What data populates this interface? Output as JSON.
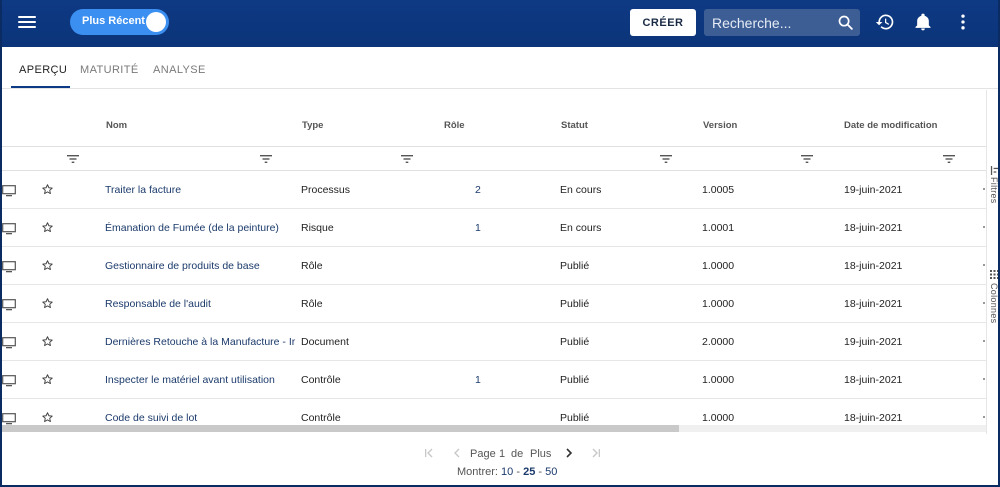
{
  "topbar": {
    "toggle_label": "Plus Récent",
    "create_label": "CRÉER",
    "search_placeholder": "Recherche..."
  },
  "tabs": [
    {
      "label": "APERÇU",
      "active": true
    },
    {
      "label": "MATURITÉ",
      "active": false
    },
    {
      "label": "ANALYSE",
      "active": false
    }
  ],
  "columns": {
    "nom": "Nom",
    "type": "Type",
    "role": "Rôle",
    "statut": "Statut",
    "version": "Version",
    "date": "Date de modification"
  },
  "rows": [
    {
      "name": "Traiter la facture",
      "type": "Processus",
      "role": "2",
      "statut": "En cours",
      "version": "1.0005",
      "date": "19-juin-2021"
    },
    {
      "name": "Émanation de Fumée (de la peinture)",
      "type": "Risque",
      "role": "1",
      "statut": "En cours",
      "version": "1.0001",
      "date": "18-juin-2021"
    },
    {
      "name": "Gestionnaire de produits de base",
      "type": "Rôle",
      "role": "",
      "statut": "Publié",
      "version": "1.0000",
      "date": "18-juin-2021"
    },
    {
      "name": "Responsable de l'audit",
      "type": "Rôle",
      "role": "",
      "statut": "Publié",
      "version": "1.0000",
      "date": "18-juin-2021"
    },
    {
      "name": "Dernières Retouche à la Manufacture - Ir",
      "type": "Document",
      "role": "",
      "statut": "Publié",
      "version": "2.0000",
      "date": "19-juin-2021"
    },
    {
      "name": "Inspecter le matériel avant utilisation",
      "type": "Contrôle",
      "role": "1",
      "statut": "Publié",
      "version": "1.0000",
      "date": "18-juin-2021"
    },
    {
      "name": "Code de suivi de lot",
      "type": "Contrôle",
      "role": "",
      "statut": "Publié",
      "version": "1.0000",
      "date": "18-juin-2021"
    }
  ],
  "side_panel": {
    "filters_label": "Filtres",
    "columns_label": "Colonnes"
  },
  "pagination": {
    "page_word": "Page",
    "page_number": "1",
    "of_word": "de",
    "total": "Plus",
    "show_label": "Montrer:",
    "sizes": [
      "10",
      "25",
      "50"
    ],
    "selected_size": "25",
    "separator": "-"
  },
  "colors": {
    "topbar": "#0e3a84",
    "toggle": "#3b8ff0",
    "link": "#1b3a6b",
    "active_tab_underline": "#0d3a84"
  },
  "icons": [
    "menu-icon",
    "search-icon",
    "history-icon",
    "bell-icon",
    "more-vert-icon",
    "filter-icon",
    "monitor-icon",
    "star-outline-icon",
    "first-page-icon",
    "prev-page-icon",
    "next-page-icon",
    "last-page-icon"
  ]
}
